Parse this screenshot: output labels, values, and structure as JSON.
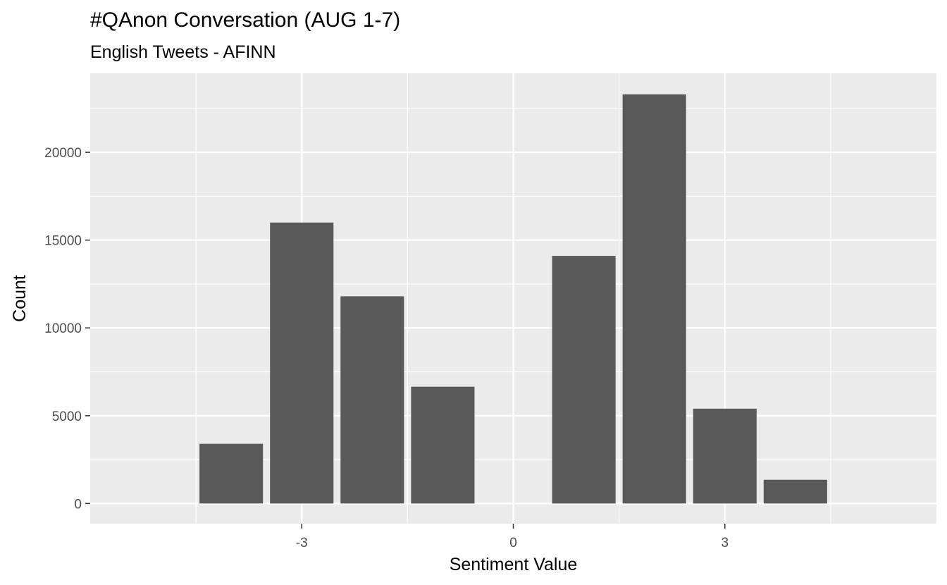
{
  "chart_data": {
    "type": "bar",
    "title": "#QAnon Conversation (AUG 1-7)",
    "subtitle": "English Tweets - AFINN",
    "xlabel": "Sentiment Value",
    "ylabel": "Count",
    "x": [
      -4,
      -3,
      -2,
      -1,
      1,
      2,
      3,
      4
    ],
    "values": [
      3400,
      16000,
      11800,
      6650,
      14100,
      23300,
      5400,
      1350
    ],
    "xlim": [
      -6,
      6
    ],
    "ylim": [
      -1150,
      24500
    ],
    "x_ticks": [
      -3,
      0,
      3
    ],
    "x_tick_labels": [
      "-3",
      "0",
      "3"
    ],
    "y_ticks": [
      0,
      5000,
      10000,
      15000,
      20000
    ],
    "y_tick_labels": [
      "0",
      "5000",
      "10000",
      "15000",
      "20000"
    ],
    "bar_color": "#595959",
    "panel_color": "#ebebeb",
    "grid": true,
    "legend": "none"
  }
}
